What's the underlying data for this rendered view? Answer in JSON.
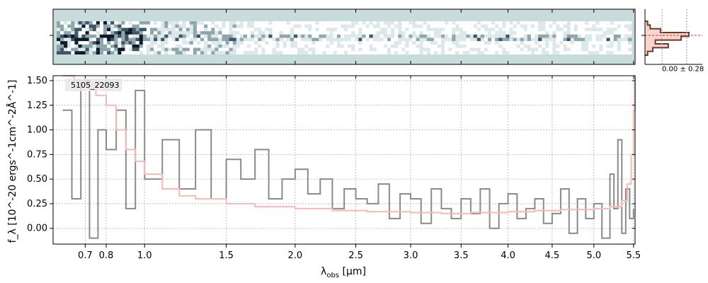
{
  "chart_data": [
    {
      "type": "heatmap",
      "panel": "2d-spectrum",
      "background_color": "#c8dcdb",
      "colormap": "bone_r",
      "y_tick_labels": [
        ""
      ],
      "trace_rows": 10
    },
    {
      "type": "histogram",
      "panel": "profile",
      "annotation": "0.00 ± 0.28",
      "fill_color": "#fbd5cc",
      "line_color": "#6b3a2c",
      "center_line_color": "#c0392b",
      "profile": [
        0.05,
        0.1,
        0.3,
        0.85,
        0.7,
        0.2,
        0.45,
        0.15,
        0.05
      ]
    },
    {
      "type": "line",
      "panel": "1d-spectrum",
      "label": "5105_22093",
      "xlabel_main": "λ",
      "xlabel_sub": "obs",
      "xlabel_unit": " [μm]",
      "ylabel": "f_λ [10^-20 ergs^-1cm^-2Å^-1]",
      "xscale": "sqrt",
      "xlim": [
        0.56,
        5.52
      ],
      "ylim": [
        -0.16,
        1.55
      ],
      "xticks": [
        0.7,
        0.8,
        1.0,
        1.5,
        2.0,
        2.5,
        3.0,
        3.5,
        4.0,
        4.5,
        5.0,
        5.5
      ],
      "xtick_labels": [
        "0.7",
        "0.8",
        "1.0",
        "1.5",
        "2.0",
        "2.5",
        "3.0",
        "3.5",
        "4.0",
        "4.5",
        "5.0",
        "5.5"
      ],
      "yticks": [
        0.0,
        0.25,
        0.5,
        0.75,
        1.0,
        1.25,
        1.5
      ],
      "ytick_labels": [
        "0.00",
        "0.25",
        "0.50",
        "0.75",
        "1.00",
        "1.25",
        "1.50"
      ],
      "grid": true,
      "series": [
        {
          "role": "data",
          "color": "#8a8a8a",
          "x": [
            0.6,
            0.64,
            0.68,
            0.72,
            0.76,
            0.8,
            0.85,
            0.9,
            0.95,
            1.0,
            1.1,
            1.2,
            1.3,
            1.4,
            1.5,
            1.6,
            1.7,
            1.8,
            1.9,
            2.0,
            2.1,
            2.2,
            2.3,
            2.4,
            2.5,
            2.6,
            2.7,
            2.8,
            2.9,
            3.0,
            3.1,
            3.2,
            3.3,
            3.4,
            3.5,
            3.6,
            3.7,
            3.8,
            3.9,
            4.0,
            4.1,
            4.2,
            4.3,
            4.4,
            4.5,
            4.6,
            4.7,
            4.8,
            4.9,
            5.0,
            5.1,
            5.2,
            5.25,
            5.3,
            5.35,
            5.4,
            5.45,
            5.5
          ],
          "y": [
            1.2,
            0.3,
            1.5,
            -0.1,
            1.0,
            0.8,
            1.2,
            0.2,
            1.4,
            0.5,
            0.9,
            0.4,
            1.0,
            0.3,
            0.7,
            0.5,
            0.8,
            0.3,
            0.5,
            0.6,
            0.35,
            0.5,
            0.2,
            0.4,
            0.3,
            0.25,
            0.45,
            0.1,
            0.35,
            0.3,
            0.05,
            0.4,
            0.2,
            0.1,
            0.3,
            0.15,
            0.4,
            0.0,
            0.25,
            0.35,
            0.1,
            0.2,
            0.3,
            0.05,
            0.15,
            0.4,
            -0.05,
            0.3,
            0.1,
            0.25,
            -0.1,
            0.55,
            0.2,
            0.9,
            -0.05,
            0.4,
            0.1,
            0.2
          ]
        },
        {
          "role": "model",
          "color": "#f7b9b5",
          "x": [
            0.6,
            0.65,
            0.7,
            0.75,
            0.8,
            0.85,
            0.9,
            0.95,
            1.0,
            1.1,
            1.2,
            1.3,
            1.5,
            1.7,
            2.0,
            2.3,
            2.6,
            3.0,
            3.3,
            3.6,
            4.0,
            4.3,
            4.6,
            5.0,
            5.2,
            5.35,
            5.42,
            5.47,
            5.5,
            5.52
          ],
          "y": [
            1.55,
            1.5,
            1.45,
            1.35,
            1.25,
            1.0,
            0.8,
            0.68,
            0.55,
            0.4,
            0.33,
            0.3,
            0.25,
            0.22,
            0.2,
            0.18,
            0.17,
            0.16,
            0.15,
            0.16,
            0.17,
            0.18,
            0.19,
            0.2,
            0.22,
            0.28,
            0.45,
            0.75,
            1.2,
            1.55
          ]
        }
      ]
    }
  ]
}
